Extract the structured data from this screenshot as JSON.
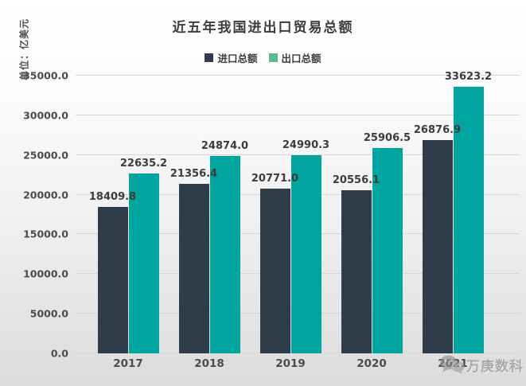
{
  "header": {
    "title": "近五年我国进出口贸易总额",
    "unit_label": "单位：亿美元"
  },
  "legend": {
    "items": [
      {
        "label": "进口总额",
        "color": "#2E3D49"
      },
      {
        "label": "出口总额",
        "color": "#5CBA8C"
      }
    ]
  },
  "watermark": {
    "icon": "wechat-icon",
    "text": "万庚数科"
  },
  "colors": {
    "import_bar": "#2E3D49",
    "export_bar": "#00A5A0",
    "gridline": "#d7d7d7",
    "text": "#3d3d3d"
  },
  "chart_data": {
    "type": "bar",
    "title": "近五年我国进出口贸易总额",
    "categories": [
      "2017",
      "2018",
      "2019",
      "2020",
      "2021"
    ],
    "series": [
      {
        "name": "进口总额",
        "color": "#2E3D49",
        "values": [
          18409.8,
          21356.4,
          20771.0,
          20556.1,
          26876.9
        ]
      },
      {
        "name": "出口总额",
        "color": "#00A5A0",
        "values": [
          22635.2,
          24874.0,
          24990.3,
          25906.5,
          33623.2
        ]
      }
    ],
    "xlabel": "",
    "ylabel": "单位：亿美元",
    "ylim": [
      0,
      35000
    ],
    "ytick_step": 5000,
    "ytick_labels": [
      "0.0",
      "5000.0",
      "10000.0",
      "15000.0",
      "20000.0",
      "25000.0",
      "30000.0",
      "35000.0"
    ],
    "grid": true,
    "legend_position": "top",
    "value_labels": true
  }
}
